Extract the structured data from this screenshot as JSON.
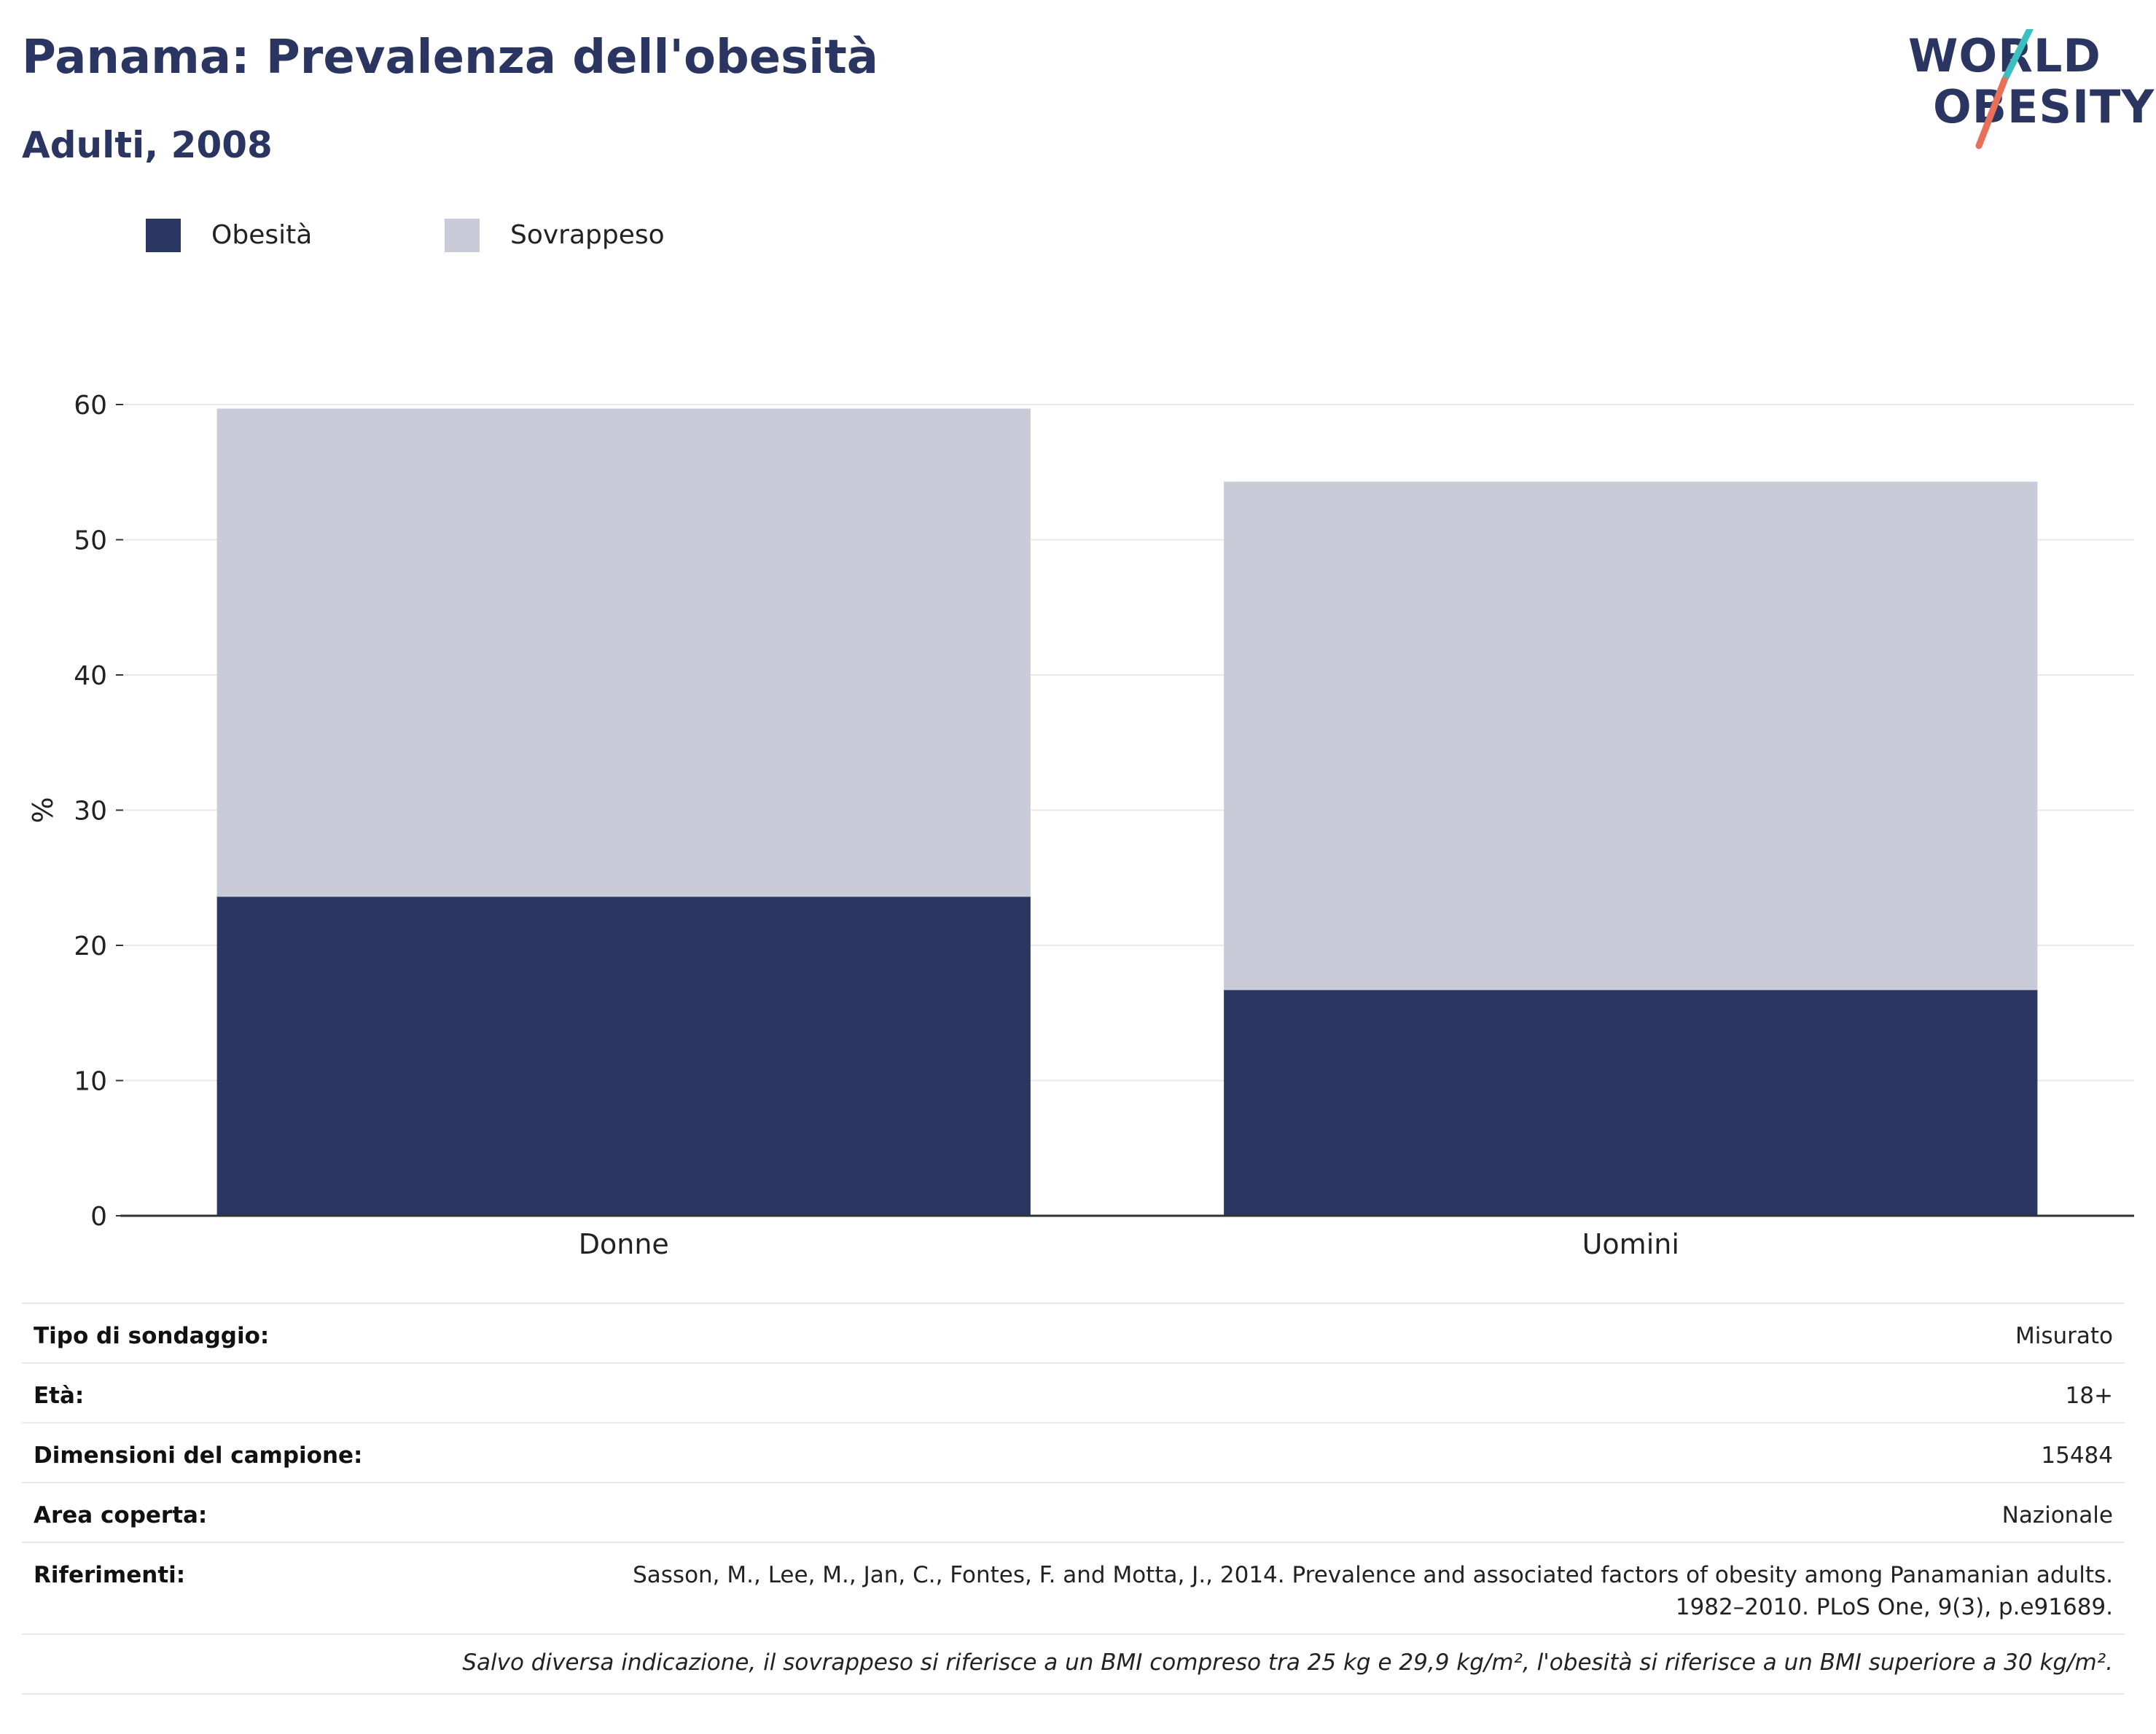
{
  "header": {
    "title": "Panama: Prevalenza dell'obesità",
    "subtitle": "Adulti, 2008"
  },
  "logo": {
    "line1": "WORLD",
    "line2": "OBESITY",
    "colors": {
      "text": "#2b3561",
      "slash_top": "#3bbfbf",
      "slash_bottom": "#e8705a"
    }
  },
  "legend": [
    {
      "label": "Obesità",
      "color": "#2b3763"
    },
    {
      "label": "Sovrappeso",
      "color": "#c9ccd8"
    }
  ],
  "chart_data": {
    "type": "bar",
    "stacked": true,
    "categories": [
      "Donne",
      "Uomini"
    ],
    "series": [
      {
        "name": "Obesità",
        "values": [
          23.6,
          16.7
        ],
        "color": "#2b3763"
      },
      {
        "name": "Sovrappeso",
        "values": [
          36.1,
          37.6
        ],
        "color": "#c9ccd8"
      }
    ],
    "ylabel": "%",
    "ylim": [
      0,
      60
    ],
    "yticks": [
      0,
      10,
      20,
      30,
      40,
      50,
      60
    ],
    "grid": true,
    "legend_position": "top-left"
  },
  "info": [
    {
      "key": "Tipo di sondaggio:",
      "value": [
        "Misurato"
      ]
    },
    {
      "key": "Età:",
      "value": [
        "18+"
      ]
    },
    {
      "key": "Dimensioni del campione:",
      "value": [
        "15484"
      ]
    },
    {
      "key": "Area coperta:",
      "value": [
        "Nazionale"
      ]
    },
    {
      "key": "Riferimenti:",
      "value": [
        "Sasson, M., Lee, M., Jan, C., Fontes, F. and Motta, J., 2014. Prevalence and associated factors of obesity among Panamanian adults.",
        "1982–2010. PLoS One, 9(3), p.e91689."
      ]
    }
  ],
  "note": "Salvo diversa indicazione, il sovrappeso si riferisce a un BMI compreso tra 25 kg e 29,9 kg/m², l'obesità si riferisce a un BMI superiore a 30 kg/m²."
}
